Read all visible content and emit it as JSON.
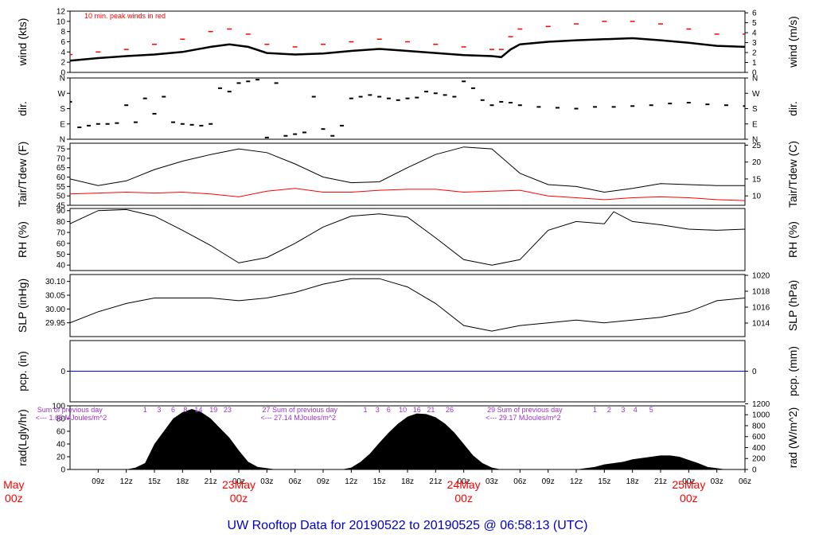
{
  "title": "UW Rooftop Data for 20190522  to  20190525 @ 06:58:13  (UTC)",
  "colors": {
    "peak": "#ff0000",
    "dew": "#ff0000",
    "pcp": "#0000ff",
    "day": "#ff0000",
    "title": "#0000cc",
    "rad_note": "#9933cc"
  },
  "x_axis": {
    "unit": "hours since 2019-05-22 06:00 UTC",
    "range": [
      0,
      72
    ],
    "ticks": [
      {
        "h": 3,
        "label": "09z"
      },
      {
        "h": 6,
        "label": "12z"
      },
      {
        "h": 9,
        "label": "15z"
      },
      {
        "h": 12,
        "label": "18z"
      },
      {
        "h": 15,
        "label": "21z"
      },
      {
        "h": 18,
        "label": "00z"
      },
      {
        "h": 21,
        "label": "03z"
      },
      {
        "h": 24,
        "label": "06z"
      },
      {
        "h": 27,
        "label": "09z"
      },
      {
        "h": 30,
        "label": "12z"
      },
      {
        "h": 33,
        "label": "15z"
      },
      {
        "h": 36,
        "label": "18z"
      },
      {
        "h": 39,
        "label": "21z"
      },
      {
        "h": 42,
        "label": "00z"
      },
      {
        "h": 45,
        "label": "03z"
      },
      {
        "h": 48,
        "label": "06z"
      },
      {
        "h": 51,
        "label": "09z"
      },
      {
        "h": 54,
        "label": "12z"
      },
      {
        "h": 57,
        "label": "15z"
      },
      {
        "h": 60,
        "label": "18z"
      },
      {
        "h": 63,
        "label": "21z"
      },
      {
        "h": 66,
        "label": "00z"
      },
      {
        "h": 69,
        "label": "03z"
      },
      {
        "h": 72,
        "label": "06z"
      }
    ],
    "day_labels": [
      {
        "h": -6,
        "text": "May",
        "sub": "00z"
      },
      {
        "h": 18,
        "text": "23May",
        "sub": "00z"
      },
      {
        "h": 42,
        "text": "24May",
        "sub": "00z"
      },
      {
        "h": 66,
        "text": "25May",
        "sub": "00z"
      }
    ]
  },
  "chart_data": [
    {
      "type": "line",
      "panel": "wind",
      "ylabel": "wind (kts)",
      "ylabel_right": "wind (m/s)",
      "ylim": [
        0,
        12
      ],
      "yticks": [
        0,
        2,
        4,
        6,
        8,
        10,
        12
      ],
      "right_ylim": [
        0,
        6.17
      ],
      "right_ticks": [
        0,
        1,
        2,
        3,
        4,
        5,
        6
      ],
      "annotation": "10 min. peak winds in red",
      "series": [
        {
          "values_x": [
            0,
            3,
            6,
            9,
            12,
            15,
            17,
            19,
            21,
            24,
            27,
            30,
            33,
            36,
            39,
            42,
            45,
            46,
            47,
            48,
            51,
            54,
            57,
            60,
            63,
            66,
            69,
            72
          ],
          "values_y": [
            2.3,
            2.8,
            3.2,
            3.5,
            4.0,
            5.0,
            5.5,
            5.0,
            3.8,
            3.5,
            3.7,
            4.2,
            4.6,
            4.2,
            3.8,
            3.4,
            3.2,
            3.0,
            4.5,
            5.5,
            6.0,
            6.3,
            6.5,
            6.7,
            6.3,
            5.8,
            5.2,
            5.0
          ]
        },
        {
          "values_x": [
            0,
            3,
            6,
            9,
            12,
            15,
            17,
            19,
            21,
            24,
            27,
            30,
            33,
            36,
            39,
            42,
            45,
            46,
            47,
            48,
            51,
            54,
            57,
            60,
            63,
            66,
            69,
            72
          ],
          "values_y": [
            3.5,
            4.0,
            4.5,
            5.5,
            6.5,
            8.0,
            8.5,
            7.5,
            5.5,
            5.0,
            5.5,
            6.0,
            6.5,
            6.0,
            5.5,
            5.0,
            4.5,
            4.5,
            7.0,
            8.5,
            9.0,
            9.5,
            10.0,
            10.0,
            9.5,
            8.5,
            7.5,
            7.5
          ]
        }
      ]
    },
    {
      "type": "scatter",
      "panel": "dir",
      "ylabel": "dir.",
      "ylabel_right": "dir.",
      "ylim": [
        0,
        360
      ],
      "yticks": [
        {
          "v": 0,
          "label": "N"
        },
        {
          "v": 90,
          "label": "E"
        },
        {
          "v": 180,
          "label": "S"
        },
        {
          "v": 270,
          "label": "W"
        },
        {
          "v": 360,
          "label": "N"
        }
      ],
      "x": [
        0,
        1,
        2,
        3,
        4,
        5,
        6,
        7,
        8,
        9,
        10,
        11,
        12,
        13,
        14,
        15,
        16,
        17,
        18,
        19,
        20,
        21,
        22,
        23,
        24,
        25,
        26,
        27,
        28,
        29,
        30,
        31,
        32,
        33,
        34,
        35,
        36,
        37,
        38,
        39,
        40,
        41,
        42,
        43,
        44,
        45,
        46,
        47,
        48,
        50,
        52,
        54,
        56,
        58,
        60,
        62,
        64,
        66,
        68,
        70,
        72
      ],
      "values": [
        220,
        70,
        80,
        90,
        90,
        95,
        200,
        100,
        240,
        150,
        250,
        100,
        90,
        85,
        80,
        90,
        300,
        280,
        330,
        340,
        350,
        10,
        330,
        20,
        30,
        40,
        250,
        60,
        20,
        80,
        240,
        250,
        260,
        250,
        240,
        230,
        240,
        245,
        280,
        270,
        260,
        250,
        340,
        300,
        230,
        200,
        220,
        215,
        200,
        190,
        185,
        180,
        190,
        190,
        195,
        200,
        210,
        215,
        205,
        200,
        195
      ]
    },
    {
      "type": "line",
      "panel": "temp",
      "ylabel": "Tair/Tdew (F)",
      "ylabel_right": "Tair/Tdew (C)",
      "ylim": [
        45,
        78
      ],
      "yticks": [
        45,
        50,
        55,
        60,
        65,
        70,
        75
      ],
      "right_ylim": [
        7.22,
        25.56
      ],
      "right_ticks": [
        10,
        15,
        20,
        25
      ],
      "x": [
        0,
        3,
        6,
        9,
        12,
        15,
        18,
        21,
        24,
        27,
        30,
        33,
        36,
        39,
        42,
        45,
        48,
        51,
        54,
        57,
        60,
        63,
        66,
        69,
        72
      ],
      "series": [
        {
          "values": [
            59,
            55.5,
            58,
            64,
            68.5,
            72,
            75,
            73,
            67,
            60,
            57,
            57.5,
            65,
            72,
            76,
            75,
            62,
            56,
            55,
            52,
            54,
            56.5,
            56,
            55.5,
            55.5
          ]
        },
        {
          "values": [
            51,
            51.5,
            52,
            51.5,
            52,
            51,
            49.5,
            52.5,
            54,
            52,
            52,
            53,
            53.5,
            53.5,
            52,
            52.5,
            53,
            50,
            49,
            48,
            49,
            49.5,
            49,
            48,
            47.5
          ]
        }
      ]
    },
    {
      "type": "line",
      "panel": "rh",
      "ylabel": "RH (%)",
      "ylabel_right": "RH (%)",
      "ylim": [
        35,
        92
      ],
      "yticks": [
        40,
        50,
        60,
        70,
        80,
        90
      ],
      "x": [
        0,
        3,
        6,
        9,
        12,
        15,
        18,
        21,
        24,
        27,
        30,
        33,
        36,
        39,
        42,
        45,
        48,
        51,
        54,
        57,
        58,
        60,
        63,
        66,
        69,
        72
      ],
      "series": [
        {
          "values": [
            78,
            90,
            91,
            85,
            72,
            58,
            42,
            47,
            60,
            75,
            85,
            87,
            84,
            65,
            45,
            40,
            45,
            72,
            80,
            78,
            89,
            80,
            77,
            73,
            72,
            73
          ]
        }
      ]
    },
    {
      "type": "line",
      "panel": "slp",
      "ylabel": "SLP (inHg)",
      "ylabel_right": "SLP (hPa)",
      "ylim": [
        29.9,
        30.125
      ],
      "yticks": [
        29.95,
        30.0,
        30.05,
        30.1
      ],
      "right_ylim": [
        1012.3,
        1020.1
      ],
      "right_ticks": [
        1014,
        1016,
        1018,
        1020
      ],
      "x": [
        0,
        3,
        6,
        9,
        12,
        15,
        18,
        21,
        24,
        27,
        30,
        33,
        36,
        39,
        42,
        45,
        48,
        51,
        54,
        57,
        60,
        63,
        66,
        69,
        72
      ],
      "series": [
        {
          "values": [
            29.95,
            29.99,
            30.02,
            30.04,
            30.04,
            30.04,
            30.03,
            30.04,
            30.06,
            30.09,
            30.11,
            30.11,
            30.08,
            30.02,
            29.94,
            29.92,
            29.94,
            29.95,
            29.96,
            29.95,
            29.96,
            29.97,
            29.99,
            30.03,
            30.04
          ]
        }
      ]
    },
    {
      "type": "line",
      "panel": "pcp",
      "ylabel": "pcp. (in)",
      "ylabel_right": "pcp. (mm)",
      "ylim": [
        -1,
        1
      ],
      "yticks": [
        0
      ],
      "right_ticks": [
        0
      ],
      "x": [
        0,
        72
      ],
      "series": [
        {
          "values": [
            0,
            0
          ]
        }
      ]
    },
    {
      "type": "area",
      "panel": "rad",
      "ylabel": "rad(Lgly/hr)",
      "ylabel_right": "rad (W/m^2)",
      "ylim": [
        0,
        100
      ],
      "yticks": [
        0,
        20,
        40,
        60,
        80,
        100
      ],
      "right_ylim": [
        0,
        1163
      ],
      "right_ticks": [
        0,
        200,
        400,
        600,
        800,
        1000,
        1200
      ],
      "x": [
        6,
        7,
        8,
        9,
        10,
        11,
        12,
        13,
        14,
        15,
        16,
        17,
        18,
        19,
        20,
        21,
        22,
        29,
        30,
        31,
        32,
        33,
        34,
        35,
        36,
        37,
        38,
        39,
        40,
        41,
        42,
        43,
        44,
        45,
        46,
        54,
        55,
        56,
        57,
        58,
        59,
        60,
        61,
        62,
        63,
        64,
        65,
        66,
        67,
        68,
        69,
        70
      ],
      "values": [
        0,
        3,
        10,
        40,
        60,
        80,
        90,
        95,
        90,
        80,
        65,
        50,
        30,
        12,
        4,
        2,
        0,
        0,
        3,
        12,
        25,
        42,
        58,
        72,
        83,
        88,
        87,
        82,
        72,
        58,
        40,
        22,
        10,
        3,
        0,
        0,
        2,
        4,
        8,
        10,
        12,
        16,
        18,
        20,
        22,
        22,
        20,
        15,
        10,
        4,
        2,
        0
      ],
      "notes": [
        {
          "h": -3.5,
          "line1": "Sum of previous day",
          "line2": "<--- 1.65 MJoules/m^2"
        },
        {
          "h": 20.5,
          "line1": "27 Sum of previous day",
          "line2": "<--- 27.14 MJoules/m^2"
        },
        {
          "h": 44.5,
          "line1": "29  Sum of previous day",
          "line2": "<--- 29.17 MJoules/m^2"
        }
      ],
      "hour_marks": [
        {
          "h": 8,
          "label": "1"
        },
        {
          "h": 9.5,
          "label": "3"
        },
        {
          "h": 11,
          "label": "6"
        },
        {
          "h": 12.3,
          "label": "8"
        },
        {
          "h": 13.7,
          "label": "14"
        },
        {
          "h": 15.3,
          "label": "19"
        },
        {
          "h": 16.8,
          "label": "23"
        },
        {
          "h": 31.5,
          "label": "1"
        },
        {
          "h": 32.8,
          "label": "3"
        },
        {
          "h": 34,
          "label": "6"
        },
        {
          "h": 35.5,
          "label": "10"
        },
        {
          "h": 37,
          "label": "16"
        },
        {
          "h": 38.5,
          "label": "21"
        },
        {
          "h": 40.5,
          "label": "26"
        },
        {
          "h": 56,
          "label": "1"
        },
        {
          "h": 57.5,
          "label": "2"
        },
        {
          "h": 59,
          "label": "3"
        },
        {
          "h": 60.3,
          "label": "4"
        },
        {
          "h": 62,
          "label": "5"
        }
      ]
    }
  ]
}
